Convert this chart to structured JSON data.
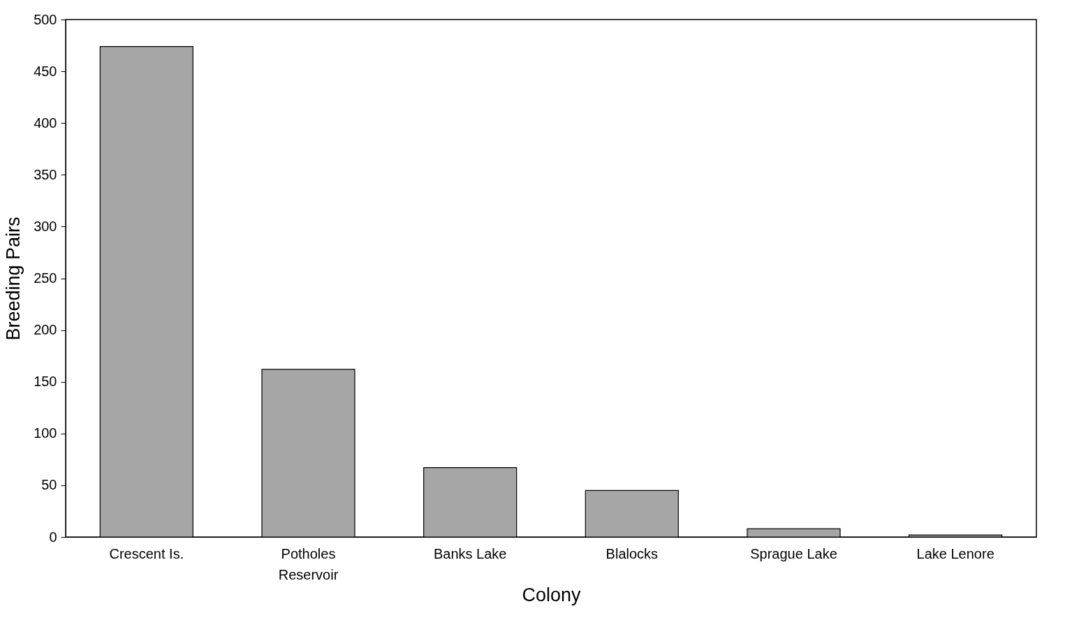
{
  "chart_data": {
    "type": "bar",
    "xlabel": "Colony",
    "ylabel": "Breeding Pairs",
    "categories": [
      "Crescent Is.",
      "Potholes Reservoir",
      "Banks Lake",
      "Blalocks",
      "Sprague Lake",
      "Lake Lenore"
    ],
    "values": [
      474,
      162,
      67,
      45,
      8,
      2
    ],
    "color": "#a6a6a6",
    "ylim": [
      0,
      500
    ],
    "yticks": [
      0,
      50,
      100,
      150,
      200,
      250,
      300,
      350,
      400,
      450,
      500
    ],
    "grid": false
  }
}
